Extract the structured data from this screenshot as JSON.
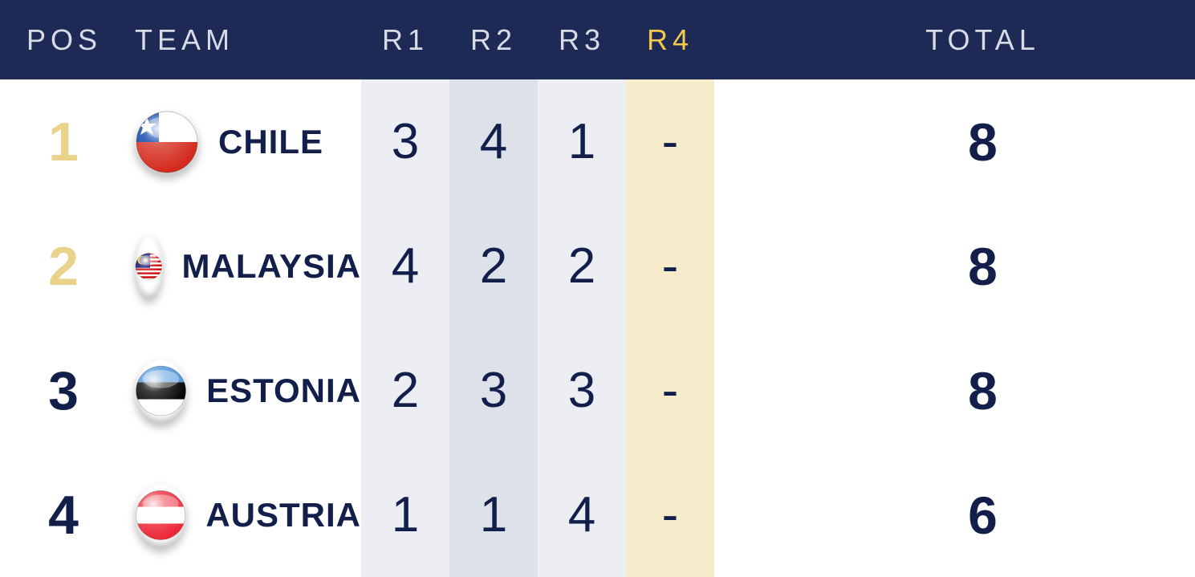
{
  "table": {
    "type": "table",
    "columns": [
      "POS",
      "TEAM",
      "R1",
      "R2",
      "R3",
      "R4",
      "TOTAL"
    ],
    "active_round_index": 3,
    "header_bg": "#1e2a56",
    "header_text_color": "#d8dbe6",
    "active_header_color": "#f2c94c",
    "text_color": "#111f4a",
    "round_bg_colors": [
      "#eceef3",
      "#dde1ea",
      "#eceef3",
      "#f6eccb"
    ],
    "pos_colors": [
      "#e9d28a",
      "#e9d28a",
      "#111f4a",
      "#111f4a"
    ],
    "rows": [
      {
        "pos": "1",
        "team": "CHILE",
        "flag": "chile",
        "r1": "3",
        "r2": "4",
        "r3": "1",
        "r4": "-",
        "total": "8"
      },
      {
        "pos": "2",
        "team": "MALAYSIA",
        "flag": "malaysia",
        "r1": "4",
        "r2": "2",
        "r3": "2",
        "r4": "-",
        "total": "8"
      },
      {
        "pos": "3",
        "team": "ESTONIA",
        "flag": "estonia",
        "r1": "2",
        "r2": "3",
        "r3": "3",
        "r4": "-",
        "total": "8"
      },
      {
        "pos": "4",
        "team": "AUSTRIA",
        "flag": "austria",
        "r1": "1",
        "r2": "1",
        "r3": "4",
        "r4": "-",
        "total": "6"
      }
    ]
  }
}
